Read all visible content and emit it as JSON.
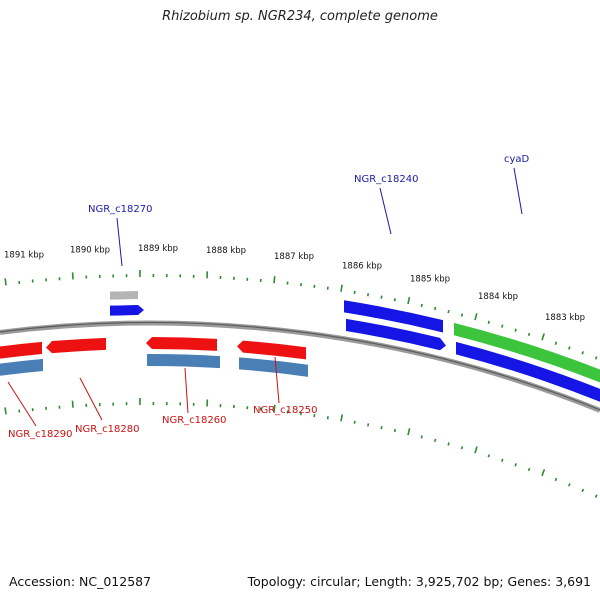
{
  "title": "Rhizobium sp. NGR234, complete genome",
  "footer": {
    "accession": "Accession: NC_012587",
    "summary": "Topology: circular; Length: 3,925,702 bp; Genes: 3,691"
  },
  "colors": {
    "backbone": "#8a8a8a",
    "tick": "#2e8b2e",
    "forward_gene": "#1515e6",
    "reverse_gene": "#ee1111",
    "cds_product": "#4a7fb5",
    "rna": "#3cc43c",
    "pseudo": "#b4b4b4",
    "label_forward": "#1a1aa8",
    "label_reverse": "#cc1111"
  },
  "scale": {
    "unit": "kbp",
    "labels": [
      "1891 kbp",
      "1890 kbp",
      "1889 kbp",
      "1888 kbp",
      "1887 kbp",
      "1886 kbp",
      "1885 kbp",
      "1884 kbp",
      "1883 kbp"
    ]
  },
  "genes": [
    {
      "name": "cyaD",
      "strand": "forward"
    },
    {
      "name": "NGR_c18240",
      "strand": "forward"
    },
    {
      "name": "NGR_c18270",
      "strand": "forward"
    },
    {
      "name": "NGR_c18250",
      "strand": "reverse"
    },
    {
      "name": "NGR_c18260",
      "strand": "reverse"
    },
    {
      "name": "NGR_c18280",
      "strand": "reverse"
    },
    {
      "name": "NGR_c18290",
      "strand": "reverse"
    }
  ]
}
